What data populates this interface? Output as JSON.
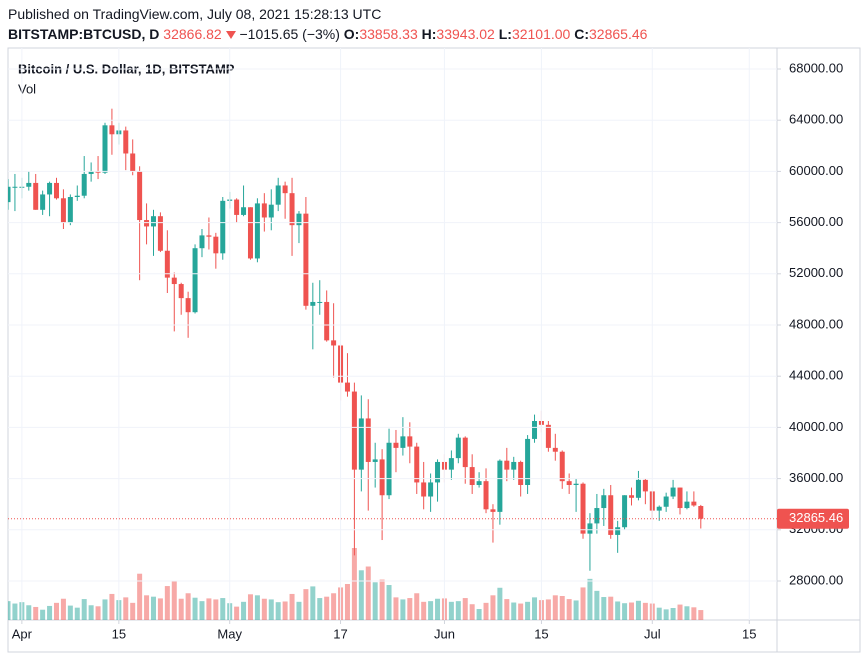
{
  "header": {
    "published": "Published on TradingView.com, July 08, 2021 15:28:13 UTC",
    "symbol": "BITSTAMP:BTCUSD, D",
    "price": "32866.82",
    "change": "−1015.65 (−3%)",
    "ohlc": [
      {
        "label": "O:",
        "value": "33858.33"
      },
      {
        "label": "H:",
        "value": "33943.02"
      },
      {
        "label": "L:",
        "value": "32101.00"
      },
      {
        "label": "C:",
        "value": "32865.46"
      }
    ]
  },
  "chart_data": {
    "type": "candlestick",
    "title": "Bitcoin / U.S. Dollar, 1D, BITSTAMP",
    "volume_label": "Vol",
    "up_color": "#26a69a",
    "down_color": "#ef5350",
    "grid": true,
    "x": [
      "2021-03-30",
      "2021-03-31",
      "2021-04-01",
      "2021-04-02",
      "2021-04-03",
      "2021-04-04",
      "2021-04-05",
      "2021-04-06",
      "2021-04-07",
      "2021-04-08",
      "2021-04-09",
      "2021-04-10",
      "2021-04-11",
      "2021-04-12",
      "2021-04-13",
      "2021-04-14",
      "2021-04-15",
      "2021-04-16",
      "2021-04-17",
      "2021-04-18",
      "2021-04-19",
      "2021-04-20",
      "2021-04-21",
      "2021-04-22",
      "2021-04-23",
      "2021-04-24",
      "2021-04-25",
      "2021-04-26",
      "2021-04-27",
      "2021-04-28",
      "2021-04-29",
      "2021-04-30",
      "2021-05-01",
      "2021-05-02",
      "2021-05-03",
      "2021-05-04",
      "2021-05-05",
      "2021-05-06",
      "2021-05-07",
      "2021-05-08",
      "2021-05-09",
      "2021-05-10",
      "2021-05-11",
      "2021-05-12",
      "2021-05-13",
      "2021-05-14",
      "2021-05-15",
      "2021-05-16",
      "2021-05-17",
      "2021-05-18",
      "2021-05-19",
      "2021-05-20",
      "2021-05-21",
      "2021-05-22",
      "2021-05-23",
      "2021-05-24",
      "2021-05-25",
      "2021-05-26",
      "2021-05-27",
      "2021-05-28",
      "2021-05-29",
      "2021-05-30",
      "2021-05-31",
      "2021-06-01",
      "2021-06-02",
      "2021-06-03",
      "2021-06-04",
      "2021-06-05",
      "2021-06-06",
      "2021-06-07",
      "2021-06-08",
      "2021-06-09",
      "2021-06-10",
      "2021-06-11",
      "2021-06-12",
      "2021-06-13",
      "2021-06-14",
      "2021-06-15",
      "2021-06-16",
      "2021-06-17",
      "2021-06-18",
      "2021-06-19",
      "2021-06-20",
      "2021-06-21",
      "2021-06-22",
      "2021-06-23",
      "2021-06-24",
      "2021-06-25",
      "2021-06-26",
      "2021-06-27",
      "2021-06-28",
      "2021-06-29",
      "2021-06-30",
      "2021-07-01",
      "2021-07-02",
      "2021-07-03",
      "2021-07-04",
      "2021-07-05",
      "2021-07-06",
      "2021-07-07",
      "2021-07-08"
    ],
    "open": [
      57600,
      58800,
      58800,
      58800,
      59100,
      57000,
      58200,
      59100,
      57900,
      56000,
      58000,
      58100,
      59800,
      60000,
      59900,
      63600,
      62900,
      63200,
      61400,
      60000,
      56200,
      55700,
      56500,
      53800,
      51700,
      51200,
      50100,
      49000,
      54000,
      55000,
      54900,
      53600,
      57700,
      57800,
      56600,
      57200,
      53200,
      57500,
      56400,
      57400,
      58900,
      58300,
      55800,
      56700,
      49500,
      49800,
      49800,
      46800,
      46400,
      43500,
      42800,
      36700,
      40700,
      37300,
      37500,
      34700,
      38800,
      38400,
      39300,
      38500,
      35700,
      34600,
      35700,
      37300,
      36700,
      37600,
      39200,
      36900,
      35500,
      35800,
      33600,
      33400,
      37400,
      36700,
      37300,
      35500,
      39100,
      40500,
      40200,
      38400,
      38100,
      35800,
      35500,
      35600,
      31700,
      32500,
      33700,
      34700,
      31600,
      32200,
      34700,
      34500,
      35900,
      35000,
      33500,
      33800,
      34600,
      35300,
      33700,
      34200,
      33858.33
    ],
    "high": [
      59400,
      59800,
      59500,
      60000,
      59800,
      58500,
      59200,
      59500,
      58600,
      58200,
      58900,
      61200,
      60700,
      61200,
      63800,
      64900,
      63800,
      63500,
      62500,
      60400,
      57500,
      57000,
      56800,
      55400,
      52100,
      51300,
      50600,
      54300,
      55500,
      56400,
      55200,
      58000,
      58400,
      57900,
      58900,
      57200,
      57900,
      58300,
      58600,
      59500,
      59200,
      59500,
      56900,
      58000,
      51300,
      51500,
      50700,
      49700,
      46500,
      45800,
      43500,
      42500,
      42200,
      38800,
      38300,
      39900,
      39800,
      40800,
      40400,
      38800,
      37300,
      36400,
      37500,
      37900,
      38200,
      39500,
      39300,
      37900,
      36500,
      36800,
      34000,
      37500,
      38400,
      37700,
      37400,
      39400,
      41000,
      41300,
      40500,
      39500,
      38200,
      36400,
      36000,
      35700,
      33300,
      34800,
      35200,
      35500,
      32700,
      34700,
      35300,
      36600,
      36000,
      35000,
      33900,
      34900,
      35900,
      35300,
      35000,
      35000,
      33943.02
    ],
    "low": [
      57000,
      56900,
      57900,
      58500,
      57000,
      56600,
      56500,
      57800,
      55500,
      55800,
      57700,
      57900,
      59200,
      59400,
      59800,
      61300,
      62100,
      60100,
      59700,
      51500,
      54300,
      53400,
      53700,
      50500,
      47500,
      48800,
      47000,
      48900,
      53300,
      53900,
      52400,
      53100,
      57100,
      56000,
      56500,
      53100,
      52900,
      55300,
      55400,
      56900,
      56300,
      53400,
      54400,
      49200,
      46100,
      48800,
      46700,
      43900,
      42100,
      42400,
      30000,
      35000,
      33500,
      35300,
      31200,
      34400,
      36500,
      37800,
      37200,
      34800,
      33600,
      33400,
      34200,
      35700,
      35900,
      37200,
      35600,
      34800,
      35300,
      33300,
      31000,
      32400,
      35800,
      35900,
      34600,
      34800,
      38800,
      39600,
      38100,
      37400,
      35200,
      34800,
      33400,
      31300,
      28800,
      31700,
      32300,
      31300,
      30200,
      32000,
      33900,
      34300,
      34000,
      32800,
      32700,
      33400,
      34400,
      33200,
      33600,
      33800,
      32101
    ],
    "close": [
      58800,
      58800,
      58800,
      59100,
      57000,
      58200,
      59100,
      57900,
      56000,
      58000,
      58100,
      59800,
      60000,
      59900,
      63600,
      62900,
      63200,
      61400,
      60000,
      56200,
      55700,
      56500,
      53800,
      51700,
      51200,
      50100,
      49000,
      54000,
      55000,
      54900,
      53600,
      57700,
      57800,
      56600,
      57200,
      53200,
      57500,
      56400,
      57400,
      58900,
      58300,
      55800,
      56700,
      49500,
      49800,
      49800,
      46800,
      46400,
      43500,
      42800,
      36700,
      40700,
      37300,
      37500,
      34700,
      38800,
      38400,
      39300,
      38500,
      35700,
      34600,
      35700,
      37300,
      36700,
      37600,
      39200,
      36900,
      35500,
      35800,
      33600,
      33400,
      37400,
      36700,
      37300,
      35500,
      39100,
      40500,
      40200,
      38400,
      38100,
      35800,
      35500,
      35600,
      31700,
      32500,
      33700,
      34700,
      31600,
      32200,
      34700,
      34500,
      35900,
      35000,
      33500,
      33800,
      34600,
      35300,
      33700,
      34200,
      33900,
      32865.46
    ],
    "volume": [
      5500,
      4800,
      5200,
      4300,
      3800,
      3000,
      4100,
      5000,
      6200,
      4200,
      3600,
      6100,
      4300,
      4000,
      6000,
      7600,
      5800,
      6600,
      5000,
      13500,
      7200,
      6800,
      6300,
      9900,
      11500,
      6200,
      7800,
      6500,
      5500,
      6300,
      6000,
      6400,
      4900,
      3900,
      5300,
      7500,
      7200,
      6200,
      6000,
      5200,
      5400,
      7600,
      5300,
      9000,
      9800,
      6400,
      6800,
      7800,
      9500,
      10500,
      21000,
      14500,
      15600,
      11000,
      11800,
      10200,
      6600,
      6000,
      6400,
      7800,
      5300,
      5500,
      6200,
      6300,
      5300,
      5500,
      6400,
      4600,
      3200,
      5000,
      7200,
      9400,
      6100,
      5100,
      4800,
      5300,
      6600,
      5800,
      6000,
      7200,
      7000,
      6100,
      5700,
      9500,
      12000,
      8500,
      6700,
      6800,
      5400,
      4900,
      5100,
      5600,
      5000,
      4800,
      3600,
      3100,
      3500,
      4500,
      4000,
      3700,
      2900
    ],
    "xlim": [
      "2021-03-30",
      "2021-07-19"
    ],
    "xticks": [
      {
        "value": "2021-04-01",
        "label": "Apr"
      },
      {
        "value": "2021-04-15",
        "label": "15"
      },
      {
        "value": "2021-05-01",
        "label": "May"
      },
      {
        "value": "2021-05-17",
        "label": "17"
      },
      {
        "value": "2021-06-01",
        "label": "Jun"
      },
      {
        "value": "2021-06-15",
        "label": "15"
      },
      {
        "value": "2021-07-01",
        "label": "Jul"
      },
      {
        "value": "2021-07-15",
        "label": "15"
      }
    ],
    "ylim": [
      24953,
      69641
    ],
    "yticks": [
      {
        "value": 28000,
        "label": "28000.00"
      },
      {
        "value": 32000,
        "label": "32000.00"
      },
      {
        "value": 36000,
        "label": "36000.00"
      },
      {
        "value": 40000,
        "label": "40000.00"
      },
      {
        "value": 44000,
        "label": "44000.00"
      },
      {
        "value": 48000,
        "label": "48000.00"
      },
      {
        "value": 52000,
        "label": "52000.00"
      },
      {
        "value": 56000,
        "label": "56000.00"
      },
      {
        "value": 60000,
        "label": "60000.00"
      },
      {
        "value": 64000,
        "label": "64000.00"
      },
      {
        "value": 68000,
        "label": "68000.00"
      }
    ]
  }
}
